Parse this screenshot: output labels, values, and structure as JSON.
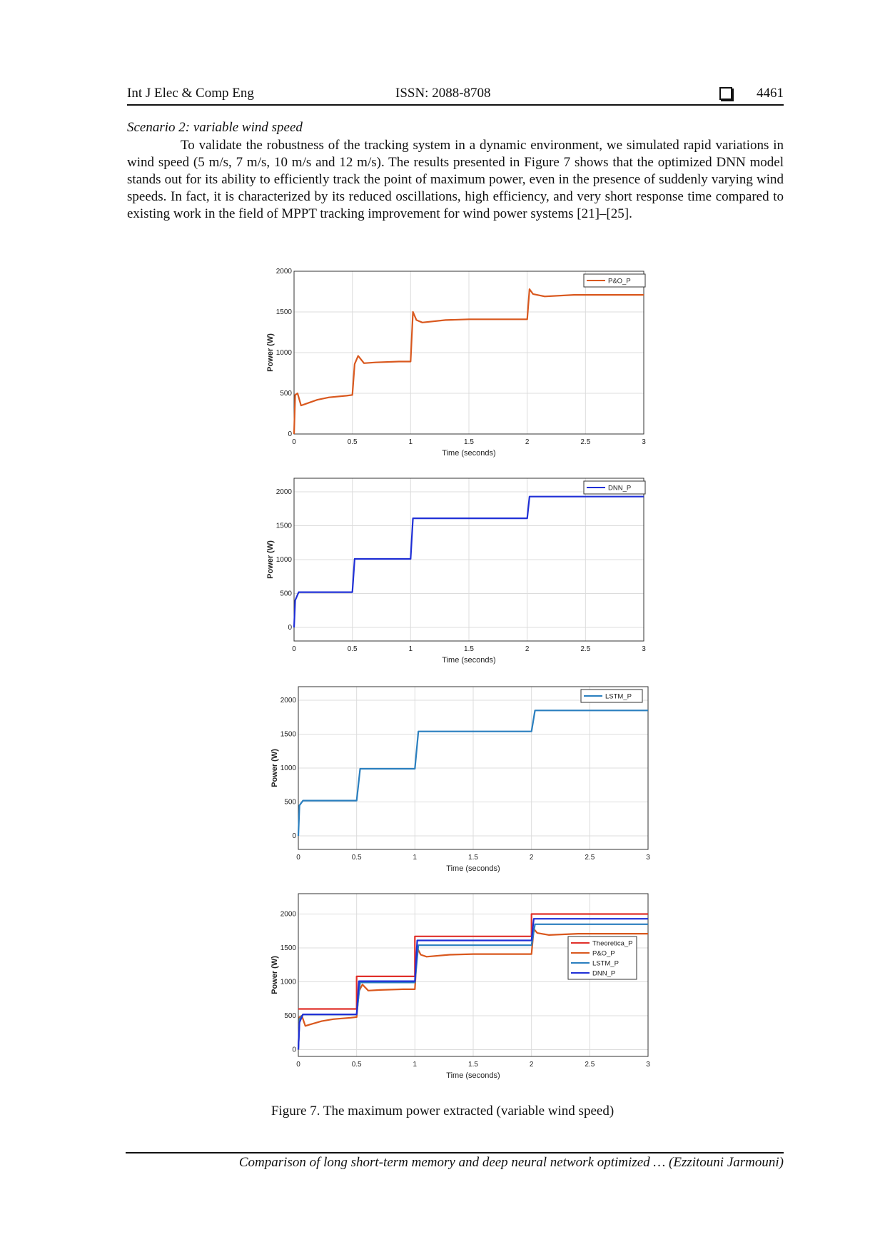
{
  "header": {
    "journal": "Int J Elec & Comp Eng",
    "issn": "ISSN: 2088-8708",
    "page_number": "4461"
  },
  "body": {
    "scenario_title": "Scenario 2: variable wind speed",
    "paragraph": "To validate the robustness of the tracking system in a dynamic environment, we simulated rapid variations in wind speed (5 m/s, 7 m/s, 10 m/s and 12 m/s). The results presented in Figure 7 shows that the optimized DNN model stands out for its ability to efficiently track the point of maximum power, even in the presence of suddenly varying wind speeds. In fact, it is characterized by its reduced oscillations, high efficiency, and very short response time compared to existing work in the field of MPPT tracking improvement for wind power systems [21]–[25]."
  },
  "figure": {
    "caption": "Figure 7. The maximum power extracted (variable wind speed)"
  },
  "footer": {
    "running_title": "Comparison of long short-term memory and deep neural network optimized … (Ezzitouni Jarmouni)"
  },
  "colors": {
    "po": "#d9581e",
    "dnn": "#1f2fd6",
    "lstm": "#2a7fbf",
    "theoretical": "#e0302a"
  },
  "chart_data": [
    {
      "type": "line",
      "xlabel": "Time (seconds)",
      "ylabel": "Power (W)",
      "xlim": [
        0,
        3
      ],
      "ylim": [
        0,
        2000
      ],
      "xticks": [
        "0",
        "0.5",
        "1",
        "1.5",
        "2",
        "2.5",
        "3"
      ],
      "yticks": [
        "0",
        "500",
        "1000",
        "1500",
        "2000"
      ],
      "legend": "top-right",
      "grid": true,
      "series": [
        {
          "name": "P&O_P",
          "color": "#d9581e",
          "x": [
            0,
            0.01,
            0.03,
            0.06,
            0.1,
            0.2,
            0.3,
            0.45,
            0.5,
            0.52,
            0.55,
            0.6,
            0.7,
            0.9,
            1.0,
            1.02,
            1.05,
            1.1,
            1.3,
            1.5,
            2.0,
            2.02,
            2.05,
            2.15,
            2.4,
            3.0
          ],
          "y": [
            0,
            480,
            500,
            350,
            370,
            420,
            450,
            470,
            480,
            860,
            960,
            870,
            880,
            890,
            890,
            1500,
            1400,
            1370,
            1400,
            1410,
            1410,
            1780,
            1720,
            1690,
            1710,
            1710
          ]
        }
      ]
    },
    {
      "type": "line",
      "xlabel": "Time (seconds)",
      "ylabel": "Power (W)",
      "xlim": [
        0,
        3
      ],
      "ylim": [
        -200,
        2200
      ],
      "xticks": [
        "0",
        "0.5",
        "1",
        "1.5",
        "2",
        "2.5",
        "3"
      ],
      "yticks": [
        "0",
        "500",
        "1000",
        "1500",
        "2000"
      ],
      "legend": "top-right",
      "grid": true,
      "series": [
        {
          "name": "DNN_P",
          "color": "#1f2fd6",
          "x": [
            0,
            0.01,
            0.04,
            0.5,
            0.52,
            1.0,
            1.02,
            2.0,
            2.02,
            3.0
          ],
          "y": [
            0,
            400,
            520,
            520,
            1010,
            1010,
            1610,
            1610,
            1930,
            1930
          ]
        }
      ]
    },
    {
      "type": "line",
      "xlabel": "Time (seconds)",
      "ylabel": "Power (W)",
      "xlim": [
        0,
        3
      ],
      "ylim": [
        -200,
        2200
      ],
      "xticks": [
        "0",
        "0.5",
        "1",
        "1.5",
        "2",
        "2.5",
        "3"
      ],
      "yticks": [
        "0",
        "500",
        "1000",
        "1500",
        "2000"
      ],
      "legend": "top-right",
      "grid": true,
      "series": [
        {
          "name": "LSTM_P",
          "color": "#2a7fbf",
          "x": [
            0,
            0.01,
            0.04,
            0.5,
            0.53,
            1.0,
            1.03,
            2.0,
            2.03,
            3.0
          ],
          "y": [
            0,
            450,
            520,
            520,
            990,
            990,
            1540,
            1540,
            1850,
            1850
          ]
        }
      ]
    },
    {
      "type": "line",
      "xlabel": "Time (seconds)",
      "ylabel": "Power (W)",
      "xlim": [
        0,
        3
      ],
      "ylim": [
        -100,
        2300
      ],
      "xticks": [
        "0",
        "0.5",
        "1",
        "1.5",
        "2",
        "2.5",
        "3"
      ],
      "yticks": [
        "0",
        "500",
        "1000",
        "1500",
        "2000"
      ],
      "legend": "right",
      "grid": true,
      "series": [
        {
          "name": "Theoretica_P",
          "color": "#e0302a",
          "x": [
            0,
            0.5,
            0.5,
            1.0,
            1.0,
            2.0,
            2.0,
            3.0
          ],
          "y": [
            600,
            600,
            1080,
            1080,
            1670,
            1670,
            2000,
            2000
          ]
        },
        {
          "name": "P&O_P",
          "color": "#d9581e",
          "x": [
            0,
            0.01,
            0.03,
            0.06,
            0.1,
            0.2,
            0.3,
            0.45,
            0.5,
            0.52,
            0.55,
            0.6,
            0.7,
            0.9,
            1.0,
            1.02,
            1.05,
            1.1,
            1.3,
            1.5,
            2.0,
            2.02,
            2.05,
            2.15,
            2.4,
            3.0
          ],
          "y": [
            0,
            480,
            500,
            350,
            370,
            420,
            450,
            470,
            480,
            860,
            960,
            870,
            880,
            890,
            890,
            1500,
            1400,
            1370,
            1400,
            1410,
            1410,
            1780,
            1720,
            1690,
            1710,
            1710
          ]
        },
        {
          "name": "LSTM_P",
          "color": "#2a7fbf",
          "x": [
            0,
            0.01,
            0.04,
            0.5,
            0.53,
            1.0,
            1.03,
            2.0,
            2.03,
            3.0
          ],
          "y": [
            0,
            450,
            520,
            520,
            990,
            990,
            1540,
            1540,
            1850,
            1850
          ]
        },
        {
          "name": "DNN_P",
          "color": "#1f2fd6",
          "x": [
            0,
            0.01,
            0.04,
            0.5,
            0.52,
            1.0,
            1.02,
            2.0,
            2.02,
            3.0
          ],
          "y": [
            0,
            400,
            520,
            520,
            1010,
            1010,
            1610,
            1610,
            1930,
            1930
          ]
        }
      ]
    }
  ]
}
